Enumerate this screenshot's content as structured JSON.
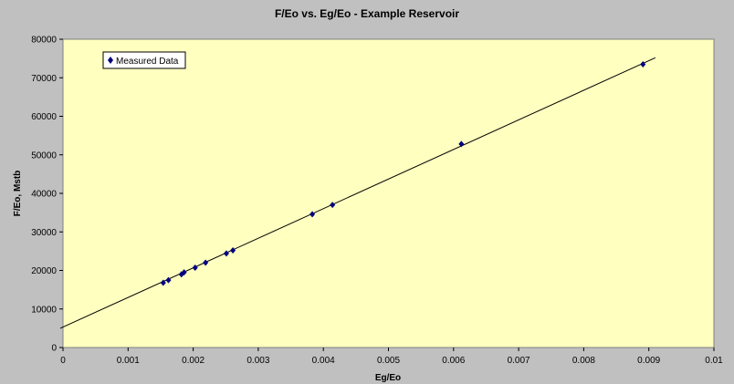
{
  "chart_data": {
    "type": "scatter",
    "title": "F/Eo vs. Eg/Eo - Example Reservoir",
    "xlabel": "Eg/Eo",
    "ylabel": "F/Eo, Mstb",
    "xlim": [
      0,
      0.01
    ],
    "ylim": [
      0,
      80000
    ],
    "x_ticks": [
      "0",
      "0.001",
      "0.002",
      "0.003",
      "0.004",
      "0.005",
      "0.006",
      "0.007",
      "0.008",
      "0.009",
      "0.01"
    ],
    "x_tick_values": [
      0,
      0.001,
      0.002,
      0.003,
      0.004,
      0.005,
      0.006,
      0.007,
      0.008,
      0.009,
      0.01
    ],
    "y_ticks": [
      "0",
      "10000",
      "20000",
      "30000",
      "40000",
      "50000",
      "60000",
      "70000",
      "80000"
    ],
    "y_tick_values": [
      0,
      10000,
      20000,
      30000,
      40000,
      50000,
      60000,
      70000,
      80000
    ],
    "grid": false,
    "legend_position": "top-left",
    "series": [
      {
        "name": "Measured Data",
        "color": "#000080",
        "marker": "diamond",
        "x": [
          0.00154,
          0.00162,
          0.00182,
          0.00186,
          0.00203,
          0.00219,
          0.00251,
          0.00261,
          0.00383,
          0.00414,
          0.00612,
          0.00891
        ],
        "y": [
          16800,
          17500,
          19000,
          19500,
          20700,
          22000,
          24400,
          25200,
          34600,
          37000,
          52800,
          73500
        ]
      }
    ],
    "trendline": {
      "x": [
        -0.0,
        0.0091
      ],
      "y": [
        5200,
        75200
      ],
      "color": "#000000"
    }
  },
  "colors": {
    "plot_background": "#ffffc0",
    "figure_background": "#c0c0c0"
  }
}
